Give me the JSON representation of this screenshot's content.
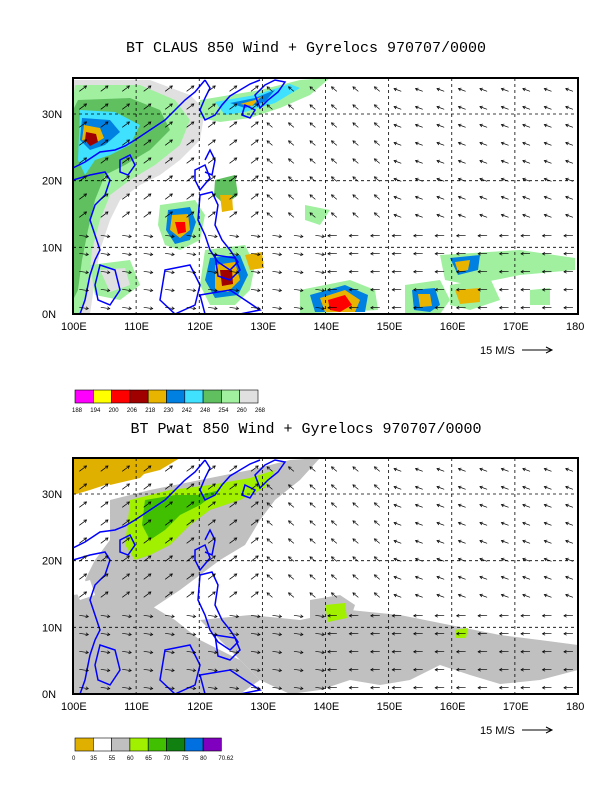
{
  "panels": [
    {
      "title": "BT CLAUS 850 Wind + Gyrelocs 970707/0000",
      "x_ticks": [
        "100E",
        "110E",
        "120E",
        "130E",
        "140E",
        "150E",
        "160E",
        "170E",
        "180"
      ],
      "y_ticks": [
        "0N",
        "10N",
        "20N",
        "30N"
      ],
      "reference_vector": "15 M/S",
      "colorbar_labels": [
        "188",
        "194",
        "200",
        "206",
        "218",
        "230",
        "242",
        "248",
        "254",
        "260",
        "268"
      ],
      "colorbar_colors": [
        "#ff00ff",
        "#ffff00",
        "#ff0000",
        "#a00000",
        "#e8b400",
        "#0080e0",
        "#40e0ff",
        "#60c060",
        "#a0f0a0",
        "#e0e0e0"
      ]
    },
    {
      "title": "BT Pwat 850 Wind + Gyrelocs 970707/0000",
      "x_ticks": [
        "100E",
        "110E",
        "120E",
        "130E",
        "140E",
        "150E",
        "160E",
        "170E",
        "180"
      ],
      "y_ticks": [
        "0N",
        "10N",
        "20N",
        "30N"
      ],
      "reference_vector": "15 M/S",
      "colorbar_labels": [
        "0",
        "35",
        "55",
        "60",
        "65",
        "70",
        "75",
        "80",
        "70.62"
      ],
      "colorbar_colors": [
        "#e0b000",
        "#ffffff",
        "#c0c0c0",
        "#a0f000",
        "#40c000",
        "#108010",
        "#0070e0",
        "#8000c0"
      ]
    }
  ],
  "colors": {
    "coastline": "#0000ff",
    "grid": "#000000",
    "vector": "#000000"
  }
}
